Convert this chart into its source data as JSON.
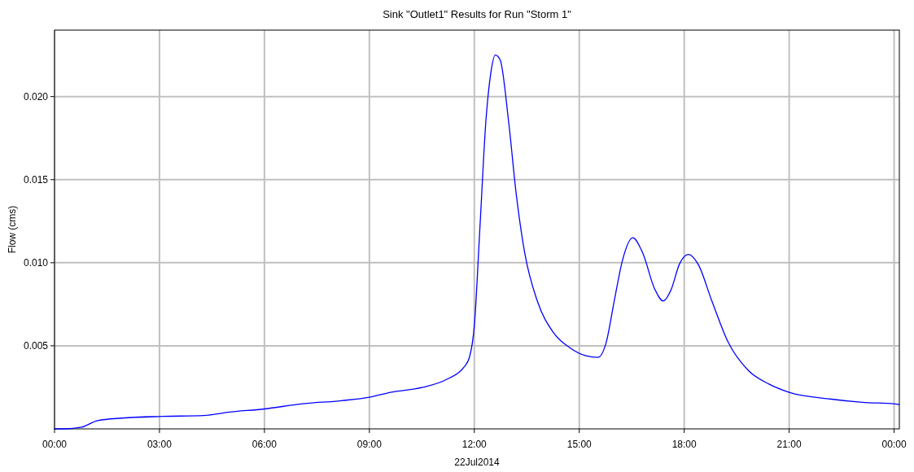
{
  "chart_data": {
    "type": "line",
    "title": "Sink \"Outlet1\" Results for Run \"Storm 1\"",
    "xlabel": "22Jul2014",
    "ylabel": "Flow (cms)",
    "grid": true,
    "line_style": "solid",
    "marker": "none",
    "xlim": [
      0,
      24.15
    ],
    "xticks": [
      {
        "value": 0,
        "label": "00:00"
      },
      {
        "value": 3,
        "label": "03:00"
      },
      {
        "value": 6,
        "label": "06:00"
      },
      {
        "value": 9,
        "label": "09:00"
      },
      {
        "value": 12,
        "label": "12:00"
      },
      {
        "value": 15,
        "label": "15:00"
      },
      {
        "value": 18,
        "label": "18:00"
      },
      {
        "value": 21,
        "label": "21:00"
      },
      {
        "value": 24,
        "label": "00:00"
      }
    ],
    "ylim": [
      0,
      0.024
    ],
    "yticks": [
      0.005,
      {
        "value": 0.01,
        "label": "0.010"
      },
      0.015,
      {
        "value": 0.02,
        "label": "0.020"
      }
    ],
    "series": [
      {
        "color": "#0000ff",
        "x": [
          0,
          0.3,
          0.77,
          1.23,
          1.93,
          3.09,
          4.26,
          4.95,
          6,
          7.05,
          8.2,
          9,
          9.6,
          10.53,
          11.23,
          11.7,
          11.86,
          12,
          12.16,
          12.33,
          12.47,
          12.6,
          12.74,
          12.98,
          13.2,
          13.44,
          13.8,
          14.26,
          14.72,
          15.19,
          15.53,
          15.77,
          16,
          16.23,
          16.53,
          16.81,
          17.16,
          17.4,
          17.63,
          17.86,
          18.12,
          18.4,
          18.79,
          19.26,
          19.84,
          20.42,
          21,
          22.16,
          23.09,
          24.02,
          24.14
        ],
        "values": [
          0,
          0,
          0.0001,
          0.0005,
          0.00065,
          0.00075,
          0.0008,
          0.001,
          0.0012,
          0.0015,
          0.0017,
          0.0019,
          0.0022,
          0.0025,
          0.003,
          0.0037,
          0.0043,
          0.0062,
          0.0121,
          0.0185,
          0.0214,
          0.0225,
          0.0222,
          0.0185,
          0.0141,
          0.0106,
          0.0077,
          0.0058,
          0.0049,
          0.0044,
          0.0043,
          0.0052,
          0.0077,
          0.0101,
          0.0115,
          0.0106,
          0.0084,
          0.0077,
          0.0084,
          0.0099,
          0.0105,
          0.0099,
          0.0077,
          0.0052,
          0.0035,
          0.0027,
          0.0022,
          0.0018,
          0.0016,
          0.0015,
          0.00147
        ]
      }
    ]
  }
}
